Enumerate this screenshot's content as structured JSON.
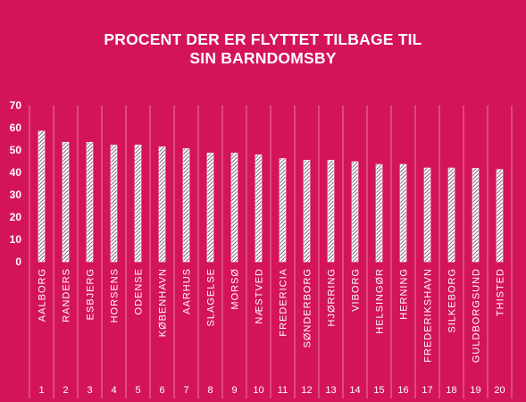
{
  "chart_data": {
    "type": "bar",
    "title": "PROCENT DER ER FLYTTET TILBAGE TIL\nSIN BARNDOMSBY",
    "xlabel": "",
    "ylabel": "",
    "ylim": [
      0,
      70
    ],
    "yticks": [
      0,
      10,
      20,
      30,
      40,
      50,
      60,
      70
    ],
    "grid": "vertical separators",
    "legend": "none",
    "categories": [
      "AALBORG",
      "RANDERS",
      "ESBJERG",
      "HORSENS",
      "ODENSE",
      "KØBENHAVN",
      "AARHUS",
      "SLAGELSE",
      "MORSØ",
      "NÆSTVED",
      "FREDERICIA",
      "SØNDERBORG",
      "HJØRRING",
      "VIBORG",
      "HELSINGØR",
      "HERNING",
      "FREDERIKSHAVN",
      "SILKEBORG",
      "GULDBORGSUND",
      "THISTED"
    ],
    "ranks": [
      "1",
      "2",
      "3",
      "4",
      "5",
      "6",
      "7",
      "8",
      "9",
      "10",
      "11",
      "12",
      "13",
      "14",
      "15",
      "16",
      "17",
      "18",
      "19",
      "20"
    ],
    "values": [
      58.5,
      53.5,
      53.5,
      52.3,
      52.3,
      51.5,
      50.7,
      48.7,
      48.7,
      47.9,
      46.2,
      45.5,
      45.5,
      44.8,
      43.6,
      43.6,
      42.0,
      42.0,
      41.8,
      41.3
    ],
    "colors": {
      "background": "#d4145a",
      "bar_fill": "#ffffff",
      "bar_hatch": "#3a1a2a",
      "text": "#ffffff"
    }
  }
}
